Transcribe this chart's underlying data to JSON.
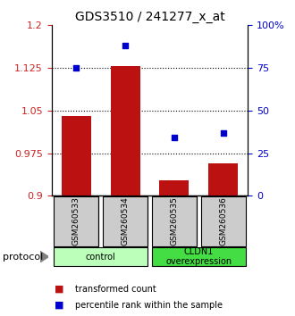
{
  "title": "GDS3510 / 241277_x_at",
  "samples": [
    "GSM260533",
    "GSM260534",
    "GSM260535",
    "GSM260536"
  ],
  "bar_values": [
    1.04,
    1.128,
    0.928,
    0.958
  ],
  "dot_values": [
    75,
    88,
    34,
    37
  ],
  "ylim_left": [
    0.9,
    1.2
  ],
  "ylim_right": [
    0,
    100
  ],
  "yticks_left": [
    0.9,
    0.975,
    1.05,
    1.125,
    1.2
  ],
  "ytick_labels_left": [
    "0.9",
    "0.975",
    "1.05",
    "1.125",
    "1.2"
  ],
  "yticks_right": [
    0,
    25,
    50,
    75,
    100
  ],
  "ytick_labels_right": [
    "0",
    "25",
    "50",
    "75",
    "100%"
  ],
  "hlines": [
    0.975,
    1.05,
    1.125
  ],
  "bar_color": "#bb1111",
  "dot_color": "#0000cc",
  "bar_width": 0.6,
  "groups": [
    {
      "label": "control",
      "samples": [
        0,
        1
      ],
      "color": "#bbffbb"
    },
    {
      "label": "CLDN1\noverexpression",
      "samples": [
        2,
        3
      ],
      "color": "#44dd44"
    }
  ],
  "protocol_label": "protocol",
  "legend_bar_label": "transformed count",
  "legend_dot_label": "percentile rank within the sample",
  "sample_box_color": "#cccccc",
  "background_color": "#ffffff"
}
